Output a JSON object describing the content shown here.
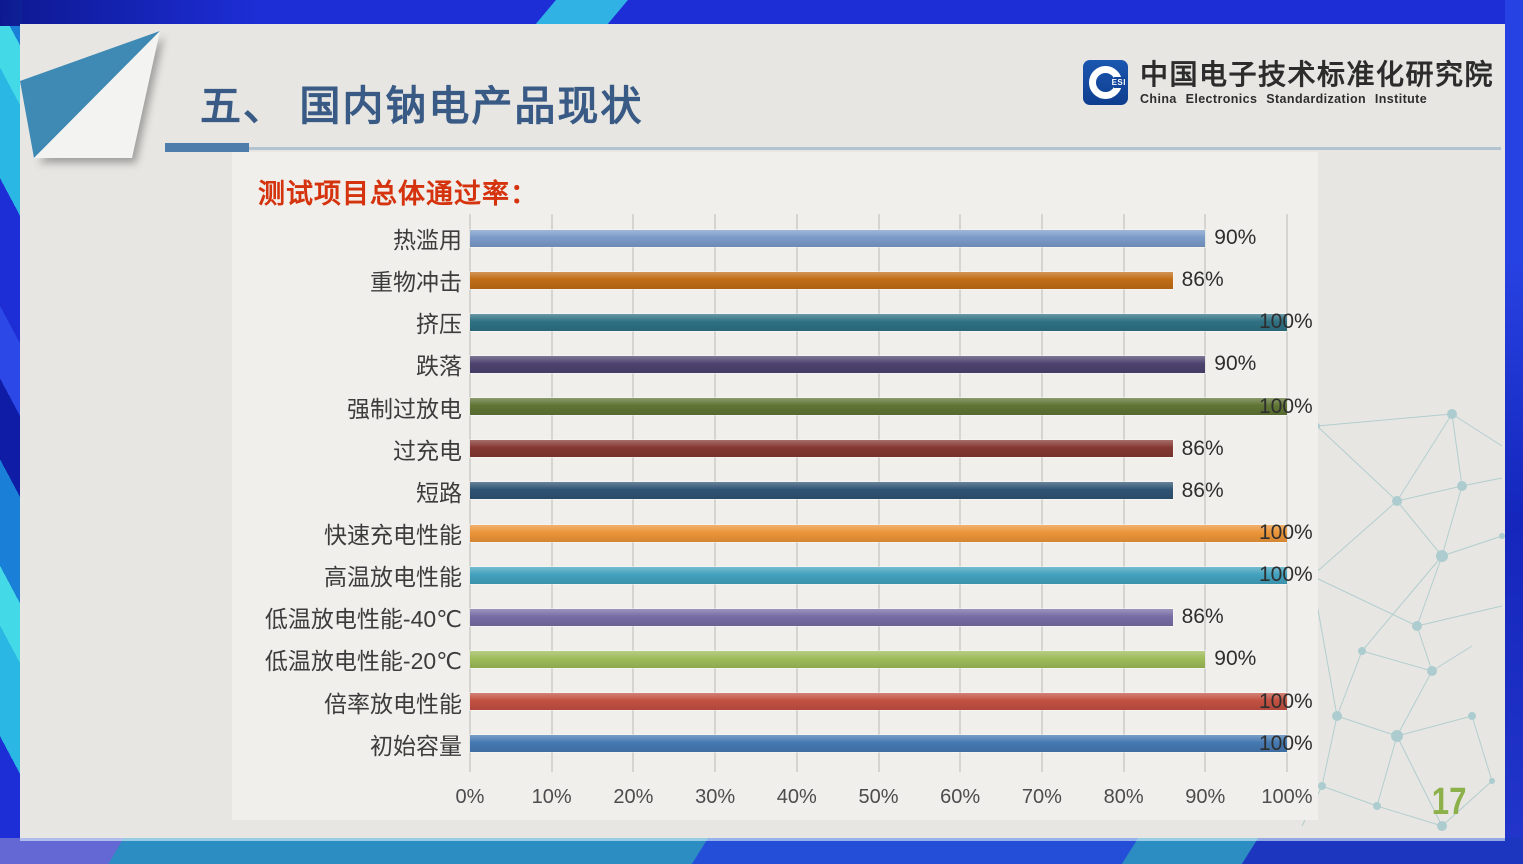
{
  "slide": {
    "title": "五、 国内钠电产品现状",
    "page_number": "17"
  },
  "logo": {
    "monogram": "ESI",
    "name_cn": "中国电子技术标准化研究院",
    "name_en": "China Electronics Standardization Institute"
  },
  "chart_data": {
    "type": "bar",
    "orientation": "horizontal",
    "title": "测试项目总体通过率：",
    "categories": [
      "热滥用",
      "重物冲击",
      "挤压",
      "跌落",
      "强制过放电",
      "过充电",
      "短路",
      "快速充电性能",
      "高温放电性能",
      "低温放电性能-40℃",
      "低温放电性能-20℃",
      "倍率放电性能",
      "初始容量"
    ],
    "values": [
      90,
      86,
      100,
      90,
      100,
      86,
      86,
      100,
      100,
      86,
      90,
      100,
      100
    ],
    "value_labels": [
      "90%",
      "86%",
      "100%",
      "90%",
      "100%",
      "86%",
      "86%",
      "100%",
      "100%",
      "86%",
      "90%",
      "100%",
      "100%"
    ],
    "bar_colors": [
      "#7b9ac8",
      "#c06c15",
      "#2e7183",
      "#4c436e",
      "#5f7434",
      "#843732",
      "#2f5373",
      "#eb9438",
      "#42a1bd",
      "#776ca4",
      "#9dbb58",
      "#c25041",
      "#4579b2"
    ],
    "x_ticks": [
      "0%",
      "10%",
      "20%",
      "30%",
      "40%",
      "50%",
      "60%",
      "70%",
      "80%",
      "90%",
      "100%"
    ],
    "xlim": [
      0,
      100
    ],
    "grid": true,
    "legend": false
  },
  "colors": {
    "background_base": "#1d2ed6",
    "bottom_band": "#2b8dc1",
    "slide_bg": "#e7e6e2",
    "panel_bg": "#f0efec",
    "slide_title": "#3a5a86",
    "chart_title": "#d5330d",
    "page_number": "#8cb14b",
    "gridline": "#d4d4d0"
  }
}
